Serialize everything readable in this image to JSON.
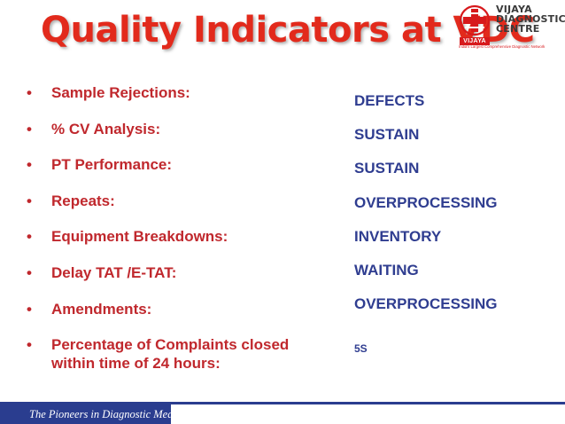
{
  "slide": {
    "title": "Quality Indicators at VDC",
    "logo": {
      "name_line1": "VIJAYA",
      "name_line2": "DIAGNOSTIC",
      "name_line3": "CENTRE",
      "badge": "VIJAYA",
      "tagline": "India's Largest Comprehensive Diagnostic Network"
    },
    "indicators": [
      {
        "label": "Sample Rejections:",
        "value": "DEFECTS"
      },
      {
        "label": "% CV Analysis:",
        "value": "SUSTAIN"
      },
      {
        "label": "PT Performance:",
        "value": "SUSTAIN"
      },
      {
        "label": "Repeats:",
        "value": "OVERPROCESSING"
      },
      {
        "label": "Equipment Breakdowns:",
        "value": "INVENTORY"
      },
      {
        "label": "Delay TAT /E-TAT:",
        "value": "WAITING"
      },
      {
        "label": "Amendments:",
        "value": "OVERPROCESSING"
      },
      {
        "label_line1": "Percentage of Complaints closed",
        "label_line2": "within time of 24 hours:",
        "value": "5S"
      }
    ],
    "bullet_char": "•",
    "footer": "The Pioneers in Diagnostic Medicare",
    "colors": {
      "title": "#e22a1c",
      "labels": "#c0282d",
      "values": "#2f3d90",
      "footer_bar": "#2a3d8f"
    }
  }
}
